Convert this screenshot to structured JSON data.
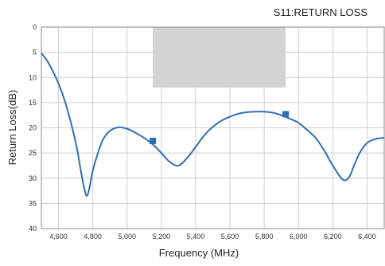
{
  "chart_data": {
    "type": "line",
    "title": "S11:RETURN LOSS",
    "xlabel": "Frequency (MHz)",
    "ylabel": "Return Loss(dB)",
    "xlim": [
      4500,
      6500
    ],
    "ylim": [
      0,
      40
    ],
    "y_inverted": true,
    "x_ticks": [
      4600,
      4800,
      5000,
      5200,
      5400,
      5600,
      5800,
      6000,
      6200,
      6400
    ],
    "x_tick_labels": [
      "4,600",
      "4,800",
      "5,000",
      "5,200",
      "5,400",
      "5,600",
      "5,800",
      "6,000",
      "6,200",
      "6,400"
    ],
    "y_ticks": [
      0,
      5,
      10,
      15,
      20,
      25,
      30,
      35,
      40
    ],
    "y_tick_labels": [
      "0",
      "5",
      "10",
      "15",
      "20",
      "25",
      "30",
      "35",
      "40"
    ],
    "grid": true,
    "shaded_region": {
      "x": [
        5150,
        5925
      ],
      "y": [
        0,
        12
      ]
    },
    "series": [
      {
        "color": "#2f6fb3",
        "x": [
          4500,
          4530,
          4560,
          4600,
          4640,
          4680,
          4710,
          4730,
          4750,
          4765,
          4780,
          4800,
          4830,
          4860,
          4900,
          4950,
          5000,
          5050,
          5100,
          5150,
          5200,
          5250,
          5300,
          5350,
          5400,
          5450,
          5500,
          5550,
          5600,
          5650,
          5700,
          5750,
          5800,
          5850,
          5900,
          5950,
          6000,
          6050,
          6100,
          6150,
          6200,
          6250,
          6275,
          6300,
          6330,
          6360,
          6400,
          6450,
          6500
        ],
        "y": [
          5.2,
          6.5,
          8.3,
          11.2,
          15.0,
          20.0,
          24.5,
          28.5,
          32.0,
          33.5,
          32.0,
          28.5,
          25.0,
          22.3,
          20.6,
          19.9,
          20.2,
          21.0,
          22.0,
          23.3,
          25.0,
          26.8,
          27.5,
          26.0,
          23.8,
          21.5,
          19.8,
          18.6,
          17.8,
          17.2,
          16.9,
          16.8,
          16.8,
          17.0,
          17.5,
          18.2,
          19.0,
          20.4,
          22.0,
          24.5,
          27.5,
          30.0,
          30.4,
          29.5,
          27.0,
          24.8,
          23.0,
          22.2,
          22.0
        ],
        "markers": [
          {
            "x": 5150,
            "y": 22.6
          },
          {
            "x": 5925,
            "y": 17.3
          }
        ]
      }
    ]
  }
}
